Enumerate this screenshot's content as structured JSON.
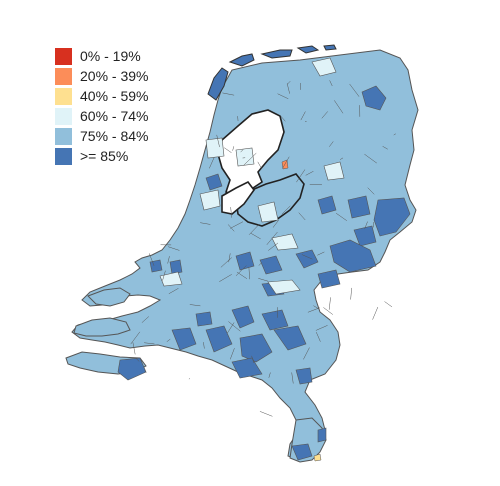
{
  "legend": {
    "items": [
      {
        "label": "0% - 19%",
        "color": "#d7301f"
      },
      {
        "label": "20% - 39%",
        "color": "#fc8d59"
      },
      {
        "label": "40% - 59%",
        "color": "#fee090"
      },
      {
        "label": "60% - 74%",
        "color": "#e0f3f8"
      },
      {
        "label": "75% - 84%",
        "color": "#91bfdb"
      },
      {
        "label": ">= 85%",
        "color": "#4575b4"
      }
    ]
  },
  "map": {
    "region": "Netherlands municipalities",
    "base_color": "#91bfdb",
    "high_color": "#4575b4",
    "light_color": "#e0f3f8",
    "border_color": "#555555",
    "water_color": "#ffffff"
  }
}
